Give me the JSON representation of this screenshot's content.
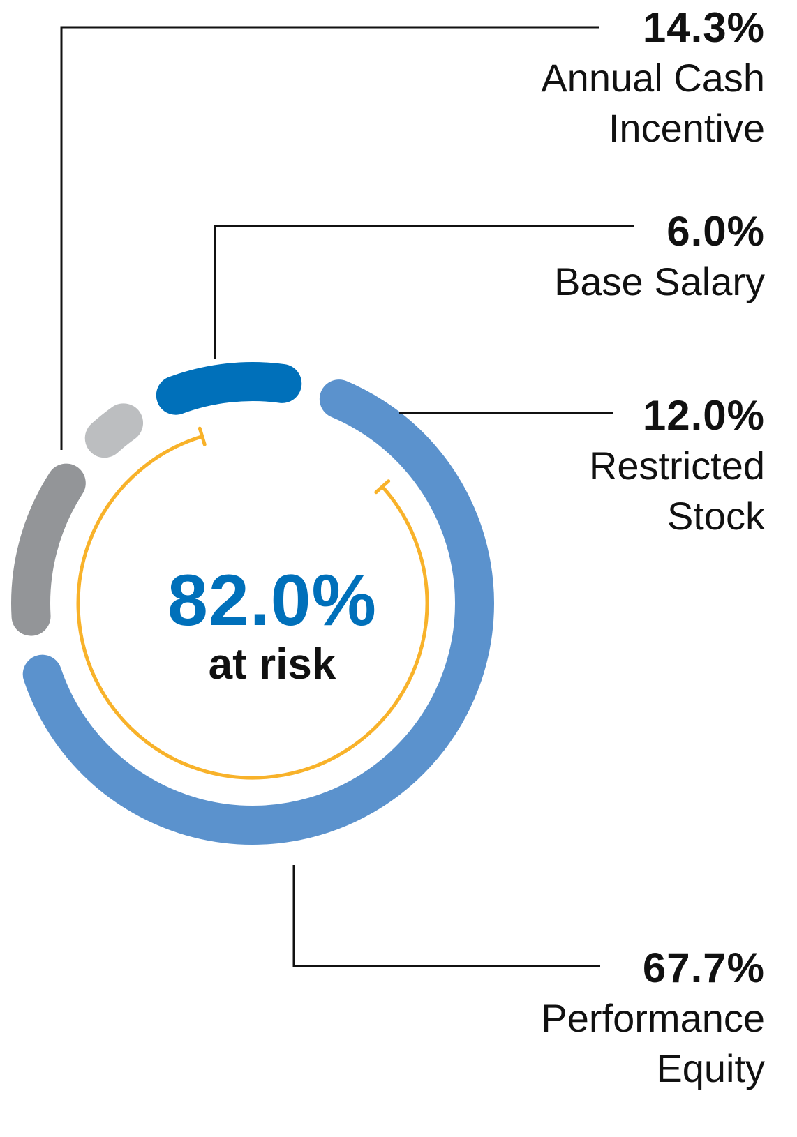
{
  "chart_data": {
    "type": "donut",
    "total_label": "82.0%",
    "total_caption": "at risk",
    "total_value": 82.0,
    "series": [
      {
        "name": "Annual Cash Incentive",
        "value": 14.3,
        "label": "14.3%",
        "color": "#939598"
      },
      {
        "name": "Base Salary",
        "value": 6.0,
        "label": "6.0%",
        "color": "#bcbec0"
      },
      {
        "name": "Restricted Stock",
        "value": 12.0,
        "label": "12.0%",
        "color": "#0070ba"
      },
      {
        "name": "Performance Equity",
        "value": 67.7,
        "label": "67.7%",
        "color": "#5b92cd"
      }
    ]
  },
  "labels": {
    "annual_cash": {
      "value": "14.3%",
      "name": "Annual Cash\nIncentive"
    },
    "base_salary": {
      "value": "6.0%",
      "name": "Base Salary"
    },
    "restricted_stock": {
      "value": "12.0%",
      "name": "Restricted\nStock"
    },
    "performance_equity": {
      "value": "67.7%",
      "name": "Performance\nEquity"
    }
  },
  "center": {
    "value": "82.0%",
    "caption": "at risk"
  },
  "colors": {
    "center_value": "#0070ba",
    "at_risk_arc": "#f8b22a",
    "leader_line": "#111111"
  }
}
